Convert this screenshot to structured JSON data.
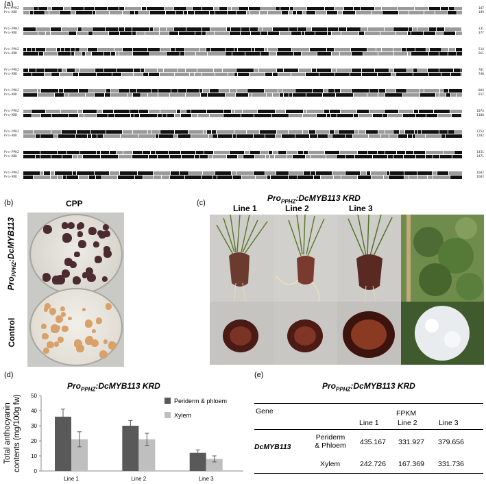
{
  "panel_a": {
    "label": "(a)",
    "blocks": [
      {
        "row1": "Pro-PPHZ",
        "row2": "Pro-KRD",
        "n1": "147",
        "n2": "189"
      },
      {
        "row1": "Pro-PPHZ",
        "row2": "Pro-KRD",
        "n1": "331",
        "n2": "377"
      },
      {
        "row1": "Pro-PPHZ",
        "row2": "Pro-KRD",
        "n1": "514",
        "n2": "561"
      },
      {
        "row1": "Pro-PPHZ",
        "row2": "Pro-KRD",
        "n1": "701",
        "n2": "740"
      },
      {
        "row1": "Pro-PPHZ",
        "row2": "Pro-KRD",
        "n1": "884",
        "n2": "917"
      },
      {
        "row1": "Pro-PPHZ",
        "row2": "Pro-KRD",
        "n1": "1074",
        "n2": "1100"
      },
      {
        "row1": "Pro-PPHZ",
        "row2": "Pro-KRD",
        "n1": "1253",
        "n2": "1282"
      },
      {
        "row1": "Pro-PPHZ",
        "row2": "Pro-KRD",
        "n1": "1431",
        "n2": "1471"
      },
      {
        "row1": "Pro-PPHZ",
        "row2": "Pro-KRD",
        "n1": "1602",
        "n2": "1602"
      }
    ]
  },
  "panel_b": {
    "label": "(b)",
    "title": "CPP",
    "row_top_label_main": "Pro",
    "row_top_label_sub": "PPHZ",
    "row_top_label_tail": ":DcMYB113",
    "row_bottom_label": "Control"
  },
  "panel_c": {
    "label": "(c)",
    "title_main": "Pro",
    "title_sub": "PPHZ",
    "title_tail": ":DcMYB113  KRD",
    "lines": [
      "Line 1",
      "Line 2",
      "Line 3"
    ]
  },
  "panel_d": {
    "label": "(d)",
    "title_main": "Pro",
    "title_sub": "PPHZ",
    "title_tail": ":DcMYB113  KRD"
  },
  "chart_data": {
    "type": "bar",
    "categories": [
      "Line 1",
      "Line 2",
      "Line 3"
    ],
    "series": [
      {
        "name": "Periderm & phloem",
        "values": [
          36,
          30,
          12
        ],
        "errors": [
          5,
          3.5,
          2
        ],
        "color": "#595959"
      },
      {
        "name": "Xylem",
        "values": [
          21,
          21,
          8
        ],
        "errors": [
          5,
          4,
          2
        ],
        "color": "#bfbfbf"
      }
    ],
    "ylabel_line1": "Total anthocyanin",
    "ylabel_line2": "contents (mg/100g fw)",
    "yticks": [
      "0",
      "10",
      "20",
      "30",
      "40",
      "50"
    ],
    "ylim": [
      0,
      50
    ],
    "grid": false,
    "legend": "top-right"
  },
  "panel_e": {
    "label": "(e)",
    "title_main": "Pro",
    "title_sub": "PPHZ",
    "title_tail": ":DcMYB113  KRD",
    "gene_header": "Gene",
    "fpkm_header": "FPKM",
    "columns": [
      "Line 1",
      "Line 2",
      "Line 3"
    ],
    "gene_name": "DcMYB113",
    "rows": [
      {
        "tissue_line1": "Periderm",
        "tissue_line2": "& Phloem",
        "values": [
          "435.167",
          "331.927",
          "379.656"
        ]
      },
      {
        "tissue_line1": "Xylem",
        "tissue_line2": "",
        "values": [
          "242.726",
          "167.369",
          "331.736"
        ]
      }
    ]
  }
}
